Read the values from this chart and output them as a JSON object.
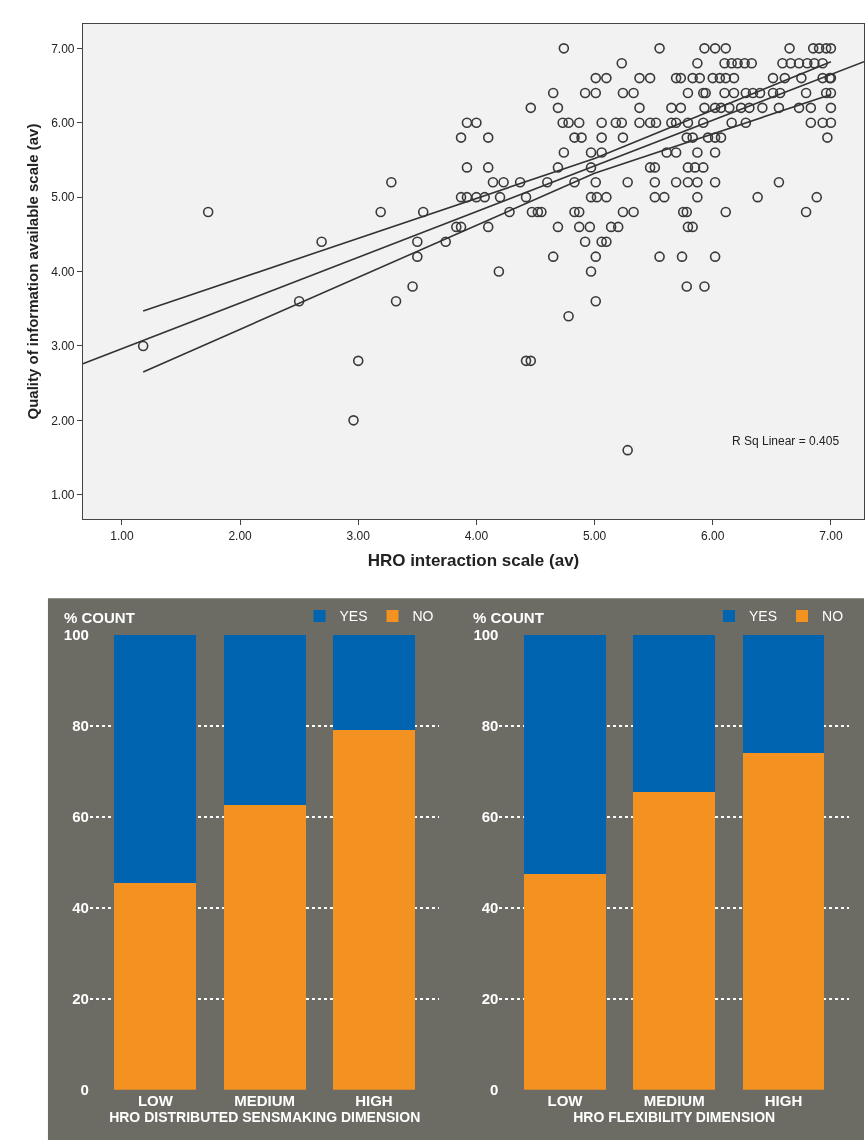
{
  "chart_data": [
    {
      "type": "scatter",
      "xlabel": "HRO interaction scale (av)",
      "ylabel": "Quality of information available scale (av)",
      "xlim": [
        0.67,
        7.28
      ],
      "ylim": [
        0.67,
        7.33
      ],
      "xticks": [
        {
          "value": 1,
          "label": "1.00"
        },
        {
          "value": 2,
          "label": "2.00"
        },
        {
          "value": 3,
          "label": "3.00"
        },
        {
          "value": 4,
          "label": "4.00"
        },
        {
          "value": 5,
          "label": "5.00"
        },
        {
          "value": 6,
          "label": "6.00"
        },
        {
          "value": 7,
          "label": "7.00"
        }
      ],
      "yticks": [
        {
          "value": 1,
          "label": "1.00"
        },
        {
          "value": 2,
          "label": "2.00"
        },
        {
          "value": 3,
          "label": "3.00"
        },
        {
          "value": 4,
          "label": "4.00"
        },
        {
          "value": 5,
          "label": "5.00"
        },
        {
          "value": 6,
          "label": "6.00"
        },
        {
          "value": 7,
          "label": "7.00"
        }
      ],
      "marker": "circle",
      "grid": false,
      "annotations": [
        "R Sq Linear = 0.405"
      ],
      "series": [
        {
          "type": "scatter",
          "color": "#3a3a3a",
          "x": [
            1.18,
            1.73,
            2.69,
            2.5,
            2.96,
            3.0,
            3.19,
            3.28,
            3.55,
            3.5,
            3.5,
            3.46,
            3.32,
            3.74,
            3.83,
            3.87,
            3.87,
            3.92,
            4.0,
            3.92,
            3.87,
            3.92,
            4.0,
            4.74,
            5.55,
            5.93,
            6.02,
            6.11,
            6.65,
            6.85,
            6.9,
            6.96,
            7.0,
            5.23,
            5.87,
            6.1,
            6.16,
            6.21,
            6.27,
            6.33,
            6.59,
            6.66,
            6.73,
            6.8,
            6.86,
            6.93,
            5.01,
            5.1,
            5.38,
            5.47,
            5.69,
            5.73,
            5.83,
            5.89,
            6.0,
            6.06,
            6.11,
            6.18,
            6.51,
            6.61,
            6.75,
            6.93,
            6.99,
            7.0,
            4.65,
            4.92,
            5.01,
            5.24,
            5.33,
            5.79,
            5.92,
            5.94,
            6.1,
            6.18,
            6.28,
            6.34,
            6.4,
            6.51,
            6.57,
            6.79,
            6.96,
            7.0,
            4.46,
            4.69,
            5.38,
            5.65,
            5.73,
            5.93,
            6.02,
            6.07,
            6.14,
            6.24,
            6.31,
            6.42,
            6.56,
            6.73,
            6.83,
            7.0,
            4.73,
            4.78,
            4.87,
            5.06,
            5.18,
            5.23,
            5.38,
            5.47,
            5.52,
            5.65,
            5.69,
            5.79,
            5.92,
            6.16,
            6.28,
            6.83,
            6.93,
            7.0,
            4.1,
            4.83,
            4.89,
            5.06,
            5.24,
            5.78,
            5.83,
            5.96,
            6.02,
            6.07,
            6.97,
            4.74,
            4.97,
            5.06,
            5.61,
            5.69,
            5.87,
            6.02,
            4.1,
            4.69,
            4.97,
            5.47,
            5.51,
            5.79,
            5.85,
            5.92,
            4.14,
            4.23,
            4.37,
            4.6,
            4.83,
            5.01,
            5.28,
            5.51,
            5.69,
            5.79,
            5.87,
            6.02,
            6.56,
            4.07,
            4.2,
            4.42,
            4.97,
            5.02,
            5.1,
            5.51,
            5.59,
            5.87,
            6.38,
            6.88,
            4.28,
            4.47,
            4.52,
            4.55,
            4.83,
            4.87,
            5.24,
            5.33,
            5.75,
            5.78,
            6.11,
            6.79,
            4.1,
            4.69,
            4.87,
            4.96,
            5.14,
            5.2,
            5.79,
            5.83,
            4.92,
            5.06,
            5.1,
            4.65,
            5.01,
            5.55,
            5.74,
            6.02,
            4.19,
            4.97,
            5.78,
            5.93,
            5.01,
            4.78,
            4.42,
            4.46,
            5.28
          ],
          "values": [
            3.0,
            4.8,
            4.4,
            3.6,
            2.0,
            2.8,
            4.8,
            5.2,
            4.8,
            4.4,
            4.2,
            3.8,
            3.6,
            4.4,
            4.6,
            4.6,
            5.8,
            6.0,
            6.0,
            5.4,
            5.0,
            5.0,
            5.0,
            7.0,
            7.0,
            7.0,
            7.0,
            7.0,
            7.0,
            7.0,
            7.0,
            7.0,
            7.0,
            6.8,
            6.8,
            6.8,
            6.8,
            6.8,
            6.8,
            6.8,
            6.8,
            6.8,
            6.8,
            6.8,
            6.8,
            6.8,
            6.6,
            6.6,
            6.6,
            6.6,
            6.6,
            6.6,
            6.6,
            6.6,
            6.6,
            6.6,
            6.6,
            6.6,
            6.6,
            6.6,
            6.6,
            6.6,
            6.6,
            6.6,
            6.4,
            6.4,
            6.4,
            6.4,
            6.4,
            6.4,
            6.4,
            6.4,
            6.4,
            6.4,
            6.4,
            6.4,
            6.4,
            6.4,
            6.4,
            6.4,
            6.4,
            6.4,
            6.2,
            6.2,
            6.2,
            6.2,
            6.2,
            6.2,
            6.2,
            6.2,
            6.2,
            6.2,
            6.2,
            6.2,
            6.2,
            6.2,
            6.2,
            6.2,
            6.0,
            6.0,
            6.0,
            6.0,
            6.0,
            6.0,
            6.0,
            6.0,
            6.0,
            6.0,
            6.0,
            6.0,
            6.0,
            6.0,
            6.0,
            6.0,
            6.0,
            6.0,
            5.8,
            5.8,
            5.8,
            5.8,
            5.8,
            5.8,
            5.8,
            5.8,
            5.8,
            5.8,
            5.8,
            5.6,
            5.6,
            5.6,
            5.6,
            5.6,
            5.6,
            5.6,
            5.4,
            5.4,
            5.4,
            5.4,
            5.4,
            5.4,
            5.4,
            5.4,
            5.2,
            5.2,
            5.2,
            5.2,
            5.2,
            5.2,
            5.2,
            5.2,
            5.2,
            5.2,
            5.2,
            5.2,
            5.2,
            5.0,
            5.0,
            5.0,
            5.0,
            5.0,
            5.0,
            5.0,
            5.0,
            5.0,
            5.0,
            5.0,
            4.8,
            4.8,
            4.8,
            4.8,
            4.8,
            4.8,
            4.8,
            4.8,
            4.8,
            4.8,
            4.8,
            4.8,
            4.6,
            4.6,
            4.6,
            4.6,
            4.6,
            4.6,
            4.6,
            4.6,
            4.4,
            4.4,
            4.4,
            4.2,
            4.2,
            4.2,
            4.2,
            4.2,
            4.0,
            4.0,
            3.8,
            3.8,
            3.6,
            3.4,
            2.8,
            2.8,
            1.6
          ]
        },
        {
          "type": "line",
          "color": "#333333",
          "marker": "none",
          "x": [
            0.67,
            7.28
          ],
          "values": [
            2.76,
            6.82
          ]
        },
        {
          "type": "line",
          "color": "#333333",
          "marker": "none",
          "x": [
            1.18,
            5.0,
            7.0
          ],
          "values": [
            3.47,
            5.52,
            6.82
          ]
        },
        {
          "type": "line",
          "color": "#333333",
          "marker": "none",
          "x": [
            1.18,
            5.0,
            7.0
          ],
          "values": [
            2.65,
            5.32,
            6.38
          ]
        }
      ]
    },
    {
      "type": "bar",
      "stacked": true,
      "categories": [
        "LOW",
        "MEDIUM",
        "HIGH"
      ],
      "ylabel": "% COUNT",
      "xlabel": "HRO DISTRIBUTED SENSMAKING DIMENSION",
      "ylim": [
        0,
        100
      ],
      "yticks": [
        0,
        20,
        40,
        60,
        80,
        100
      ],
      "grid": "y",
      "legend": "top right",
      "series": [
        {
          "name": "NO",
          "color": "#f39220",
          "values": [
            45.5,
            62.5,
            79
          ]
        },
        {
          "name": "YES",
          "color": "#0064b0",
          "values": [
            54.5,
            37.5,
            21
          ]
        }
      ]
    },
    {
      "type": "bar",
      "stacked": true,
      "categories": [
        "LOW",
        "MEDIUM",
        "HIGH"
      ],
      "ylabel": "% COUNT",
      "xlabel": "HRO FLEXIBILITY DIMENSION",
      "ylim": [
        0,
        100
      ],
      "yticks": [
        0,
        20,
        40,
        60,
        80,
        100
      ],
      "grid": "y",
      "legend": "top right",
      "series": [
        {
          "name": "NO",
          "color": "#f39220",
          "values": [
            47.5,
            65.5,
            74
          ]
        },
        {
          "name": "YES",
          "color": "#0064b0",
          "values": [
            52.5,
            34.5,
            26
          ]
        }
      ]
    }
  ]
}
